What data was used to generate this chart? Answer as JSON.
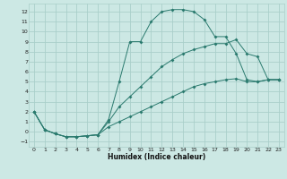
{
  "xlabel": "Humidex (Indice chaleur)",
  "bg_color": "#cce8e4",
  "grid_color": "#aacfca",
  "line_color": "#2a7a6e",
  "xlim": [
    -0.5,
    23.5
  ],
  "ylim": [
    -1.5,
    12.8
  ],
  "xticks": [
    0,
    1,
    2,
    3,
    4,
    5,
    6,
    7,
    8,
    9,
    10,
    11,
    12,
    13,
    14,
    15,
    16,
    17,
    18,
    19,
    20,
    21,
    22,
    23
  ],
  "yticks": [
    -1,
    0,
    1,
    2,
    3,
    4,
    5,
    6,
    7,
    8,
    9,
    10,
    11,
    12
  ],
  "curve1_x": [
    0,
    1,
    2,
    3,
    4,
    5,
    6,
    7,
    8,
    9,
    10,
    11,
    12,
    13,
    14,
    15,
    16,
    17,
    18,
    19,
    20,
    21,
    22,
    23
  ],
  "curve1_y": [
    2,
    0.2,
    -0.2,
    -0.5,
    -0.5,
    -0.4,
    -0.3,
    1.2,
    5.0,
    9.0,
    9.0,
    11.0,
    12.0,
    12.2,
    12.2,
    12.0,
    11.2,
    9.5,
    9.5,
    7.8,
    5.2,
    5.0,
    5.2,
    5.2
  ],
  "curve2_x": [
    0,
    1,
    2,
    3,
    4,
    5,
    6,
    7,
    8,
    9,
    10,
    11,
    12,
    13,
    14,
    15,
    16,
    17,
    18,
    19,
    20,
    21,
    22,
    23
  ],
  "curve2_y": [
    2,
    0.2,
    -0.2,
    -0.5,
    -0.5,
    -0.4,
    -0.3,
    1.0,
    2.5,
    3.5,
    4.5,
    5.5,
    6.5,
    7.2,
    7.8,
    8.2,
    8.5,
    8.8,
    8.8,
    9.2,
    7.8,
    7.5,
    5.2,
    5.2
  ],
  "curve3_x": [
    0,
    1,
    2,
    3,
    4,
    5,
    6,
    7,
    8,
    9,
    10,
    11,
    12,
    13,
    14,
    15,
    16,
    17,
    18,
    19,
    20,
    21,
    22,
    23
  ],
  "curve3_y": [
    2,
    0.2,
    -0.2,
    -0.5,
    -0.5,
    -0.4,
    -0.3,
    0.5,
    1.0,
    1.5,
    2.0,
    2.5,
    3.0,
    3.5,
    4.0,
    4.5,
    4.8,
    5.0,
    5.2,
    5.3,
    5.0,
    5.0,
    5.2,
    5.2
  ]
}
